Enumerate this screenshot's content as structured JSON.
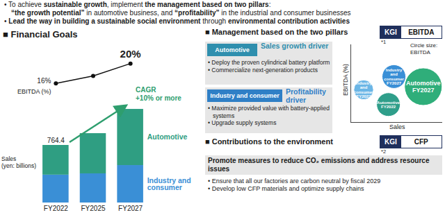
{
  "header": {
    "bullets": [
      {
        "lines": [
          [
            {
              "text": "• To achieve ",
              "bold": false
            },
            {
              "text": "sustainable growth",
              "bold": true
            },
            {
              "text": ", implement ",
              "bold": false
            },
            {
              "text": "the management based on two pillars",
              "bold": true
            },
            {
              "text": ":",
              "bold": false
            }
          ],
          [
            {
              "text": "“the growth potential”",
              "bold": true
            },
            {
              "text": " in automotive business, and ",
              "bold": false
            },
            {
              "text": "“profitability”",
              "bold": true
            },
            {
              "text": " in the industrial and consumer businesses",
              "bold": false
            }
          ]
        ]
      },
      {
        "lines": [
          [
            {
              "text": "• ",
              "bold": false
            },
            {
              "text": "Lead the way in building a sustainable social environment",
              "bold": true
            },
            {
              "text": " through ",
              "bold": false
            },
            {
              "text": "environmental contribution activities",
              "bold": true
            }
          ]
        ]
      }
    ]
  },
  "financial_goals": {
    "title": "■ Financial Goals"
  },
  "management": {
    "title": "■ Management based on the two pillars",
    "kgi": {
      "label": "KGI",
      "value": "EBITDA",
      "footnote": "*1"
    },
    "pillars": [
      {
        "name": "Automotive",
        "driver": "Sales growth driver",
        "color": "#2f8fae",
        "bullets": [
          "• Deploy the proven cylindrical battery platform",
          "• Commercialize next-generation products"
        ]
      },
      {
        "name": "Industry and consumer",
        "driver": "Profitability driver",
        "color": "#2f7fc6",
        "bullets": [
          "• Maximize provided value with battery-applied systems",
          "• Upgrade supply systems"
        ]
      }
    ]
  },
  "environment": {
    "title": "■ Contributions to the environment",
    "kgi": {
      "label": "KGI",
      "value": "CFP",
      "footnote": "*2"
    },
    "headline": "Promote measures to reduce CO₂ emissions and address resource issues",
    "bullets": [
      "• Ensure that all our factories are carbon neutral by fiscal 2029",
      "• Develop low CFP materials and optimize supply chains"
    ]
  },
  "chart_data": [
    {
      "type": "bar",
      "stacked": true,
      "categories": [
        "FY2022",
        "FY2025",
        "FY2027"
      ],
      "series": [
        {
          "name": "Industry and consumer",
          "color": "#3a8fd6",
          "values": [
            370,
            387,
            497
          ]
        },
        {
          "name": "Automotive",
          "color": "#2f9e82",
          "values": [
            394.4,
            534,
            746
          ]
        }
      ],
      "y_label": "Sales\n(yen: billions)",
      "ylim": [
        0,
        1400
      ],
      "tick_labels": "x",
      "total_label": {
        "category": "FY2022",
        "value": 764.4
      },
      "annotation": "CAGR\n+10% or more"
    },
    {
      "type": "line",
      "categories": [
        "FY2022",
        "FY2025",
        "FY2027"
      ],
      "values": [
        16,
        17.5,
        20
      ],
      "value_labels": [
        "16%",
        null,
        "20%"
      ],
      "data_labels": true,
      "y_label": "EBITDA (%)",
      "ylim": [
        14,
        21
      ],
      "tick_labels": false,
      "color": "#111111",
      "marker": "circle"
    },
    {
      "type": "bubble",
      "labels": [
        "Industry\nand\nconsumer\nFY2022",
        "Industry\nand\nconsumer\nFY2027",
        "Automotive\nFY2022",
        "Automotive\nFY2027"
      ],
      "x": [
        14,
        47,
        41,
        79
      ],
      "values": [
        42,
        59,
        23,
        46
      ],
      "sizes": [
        20,
        29,
        29,
        73
      ],
      "colors": [
        "#6bb6e6",
        "#3a8fd6",
        "#2f9e8a",
        "#2fae7a"
      ],
      "x_label": "Sales",
      "y_label": "EBITDA (%)",
      "note": "Circle size:\nEBITDA",
      "xlim": [
        0,
        100
      ],
      "ylim": [
        0,
        100
      ],
      "tick_labels": false
    }
  ]
}
